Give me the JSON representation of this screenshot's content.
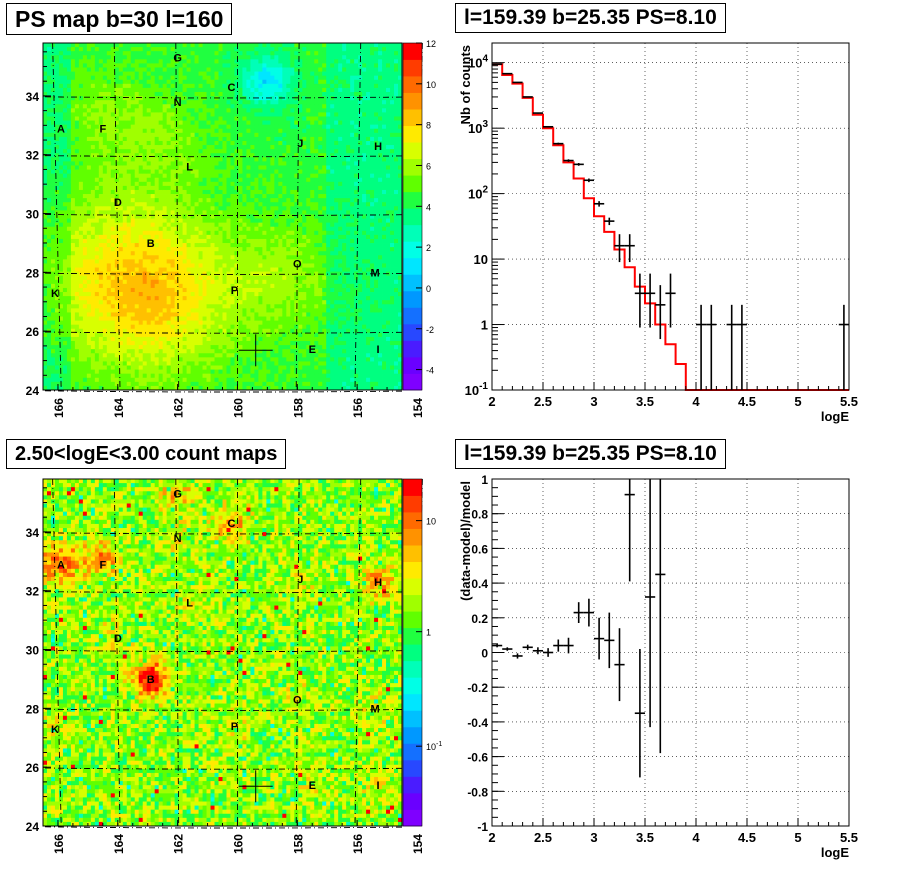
{
  "panels": {
    "ps_map": {
      "title": "PS map b=30 l=160"
    },
    "spectrum": {
      "title": "l=159.39 b=25.35 PS=8.10"
    },
    "count_map": {
      "title": "2.50<logE<3.00 count maps"
    },
    "residual": {
      "title": "l=159.39 b=25.35 PS=8.10"
    }
  },
  "chart_data": [
    {
      "type": "heatmap",
      "name": "ps_map",
      "title": "PS map b=30 l=160",
      "x_ticks": [
        "166",
        "164",
        "162",
        "160",
        "158",
        "156",
        "154"
      ],
      "y_ticks": [
        "24",
        "26",
        "28",
        "30",
        "32",
        "34"
      ],
      "xlim": [
        154.5,
        166.5
      ],
      "ylim": [
        24,
        35.8
      ],
      "colorbar_ticks": [
        "12",
        "10",
        "8",
        "6",
        "4",
        "2",
        "0",
        "-2",
        "-4"
      ],
      "colorbar_range": [
        -5,
        12
      ],
      "sources": [
        {
          "label": "G",
          "l": 162.0,
          "b": 35.3
        },
        {
          "label": "C",
          "l": 160.2,
          "b": 34.3
        },
        {
          "label": "N",
          "l": 162.0,
          "b": 33.8
        },
        {
          "label": "A",
          "l": 165.9,
          "b": 32.9
        },
        {
          "label": "F",
          "l": 164.5,
          "b": 32.9
        },
        {
          "label": "J",
          "l": 157.9,
          "b": 32.4
        },
        {
          "label": "H",
          "l": 155.3,
          "b": 32.3
        },
        {
          "label": "L",
          "l": 161.6,
          "b": 31.6
        },
        {
          "label": "D",
          "l": 164.0,
          "b": 30.4
        },
        {
          "label": "B",
          "l": 162.9,
          "b": 29.0
        },
        {
          "label": "O",
          "l": 158.0,
          "b": 28.3
        },
        {
          "label": "M",
          "l": 155.4,
          "b": 28.0
        },
        {
          "label": "K",
          "l": 166.1,
          "b": 27.3
        },
        {
          "label": "P",
          "l": 160.1,
          "b": 27.4
        },
        {
          "label": "E",
          "l": 157.5,
          "b": 25.4
        },
        {
          "label": "I",
          "l": 155.3,
          "b": 25.4
        }
      ],
      "marker": {
        "l": 159.39,
        "b": 25.35
      }
    },
    {
      "type": "line",
      "name": "spectrum",
      "title": "l=159.39 b=25.35 PS=8.10",
      "xlabel": "logE",
      "ylabel": "Nb of counts",
      "xlim": [
        2,
        5.5
      ],
      "ylim": [
        0.1,
        20000
      ],
      "yscale": "log",
      "x_ticks": [
        "2",
        "2.5",
        "3",
        "3.5",
        "4",
        "4.5",
        "5",
        "5.5"
      ],
      "y_ticks": [
        "10^-1",
        "1",
        "10",
        "10^2",
        "10^3",
        "10^4"
      ],
      "grid": true,
      "model_step": {
        "color": "#ff0000",
        "edges": [
          2.0,
          2.1,
          2.2,
          2.3,
          2.4,
          2.5,
          2.6,
          2.7,
          2.8,
          2.9,
          3.0,
          3.1,
          3.2,
          3.3,
          3.4,
          3.5,
          3.6,
          3.7,
          3.8,
          3.9,
          4.0,
          5.5
        ],
        "values": [
          9500,
          6500,
          4800,
          2900,
          1600,
          1000,
          550,
          300,
          170,
          85,
          45,
          26,
          14,
          7.5,
          3.8,
          2.1,
          1.0,
          0.5,
          0.25,
          0.1,
          0.1
        ]
      },
      "data_points": [
        {
          "x": 2.05,
          "y": 9500,
          "xerr": 0.05
        },
        {
          "x": 2.15,
          "y": 6800,
          "xerr": 0.05
        },
        {
          "x": 2.25,
          "y": 5000,
          "xerr": 0.05
        },
        {
          "x": 2.35,
          "y": 3000,
          "xerr": 0.05
        },
        {
          "x": 2.45,
          "y": 1700,
          "xerr": 0.05
        },
        {
          "x": 2.55,
          "y": 1050,
          "xerr": 0.05
        },
        {
          "x": 2.65,
          "y": 580,
          "xerr": 0.05
        },
        {
          "x": 2.75,
          "y": 320,
          "xerr": 0.05
        },
        {
          "x": 2.85,
          "y": 280,
          "xerr": 0.05
        },
        {
          "x": 2.95,
          "y": 160,
          "xerr": 0.05
        },
        {
          "x": 3.05,
          "y": 70,
          "xerr": 0.05
        },
        {
          "x": 3.15,
          "y": 38,
          "xerr": 0.05
        },
        {
          "x": 3.25,
          "y": 16,
          "xerr": 0.05,
          "ylo": 9,
          "yhi": 24
        },
        {
          "x": 3.35,
          "y": 16,
          "xerr": 0.05,
          "ylo": 9,
          "yhi": 24
        },
        {
          "x": 3.45,
          "y": 3,
          "xerr": 0.05,
          "ylo": 0.9,
          "yhi": 6
        },
        {
          "x": 3.55,
          "y": 3,
          "xerr": 0.05,
          "ylo": 0.9,
          "yhi": 6
        },
        {
          "x": 3.65,
          "y": 2,
          "xerr": 0.05,
          "ylo": 0.6,
          "yhi": 4
        },
        {
          "x": 3.75,
          "y": 3,
          "xerr": 0.05,
          "ylo": 0.9,
          "yhi": 6
        },
        {
          "x": 4.05,
          "y": 1,
          "xerr": 0.05,
          "ylo": 0.1,
          "yhi": 2
        },
        {
          "x": 4.15,
          "y": 1,
          "xerr": 0.05,
          "ylo": 0.1,
          "yhi": 2
        },
        {
          "x": 4.35,
          "y": 1,
          "xerr": 0.05,
          "ylo": 0.1,
          "yhi": 2
        },
        {
          "x": 4.45,
          "y": 1,
          "xerr": 0.05,
          "ylo": 0.1,
          "yhi": 2
        },
        {
          "x": 5.45,
          "y": 1,
          "xerr": 0.05,
          "ylo": 0.1,
          "yhi": 2
        }
      ]
    },
    {
      "type": "heatmap",
      "name": "count_map",
      "title": "2.50<logE<3.00 count maps",
      "x_ticks": [
        "166",
        "164",
        "162",
        "160",
        "158",
        "156",
        "154"
      ],
      "y_ticks": [
        "24",
        "26",
        "28",
        "30",
        "32",
        "34"
      ],
      "xlim": [
        154.5,
        166.5
      ],
      "ylim": [
        24,
        35.8
      ],
      "colorbar_ticks": [
        "10",
        "1",
        "10^-1"
      ],
      "colorbar_scale": "log",
      "sources": [
        {
          "label": "G",
          "l": 162.0,
          "b": 35.3
        },
        {
          "label": "C",
          "l": 160.2,
          "b": 34.3
        },
        {
          "label": "N",
          "l": 162.0,
          "b": 33.8
        },
        {
          "label": "A",
          "l": 165.9,
          "b": 32.9
        },
        {
          "label": "F",
          "l": 164.5,
          "b": 32.9
        },
        {
          "label": "J",
          "l": 157.9,
          "b": 32.4
        },
        {
          "label": "H",
          "l": 155.3,
          "b": 32.3
        },
        {
          "label": "L",
          "l": 161.6,
          "b": 31.6
        },
        {
          "label": "D",
          "l": 164.0,
          "b": 30.4
        },
        {
          "label": "B",
          "l": 162.9,
          "b": 29.0
        },
        {
          "label": "O",
          "l": 158.0,
          "b": 28.3
        },
        {
          "label": "M",
          "l": 155.4,
          "b": 28.0
        },
        {
          "label": "K",
          "l": 166.1,
          "b": 27.3
        },
        {
          "label": "P",
          "l": 160.1,
          "b": 27.4
        },
        {
          "label": "E",
          "l": 157.5,
          "b": 25.4
        },
        {
          "label": "I",
          "l": 155.3,
          "b": 25.4
        }
      ],
      "marker": {
        "l": 159.39,
        "b": 25.35
      }
    },
    {
      "type": "scatter",
      "name": "residual",
      "title": "l=159.39 b=25.35 PS=8.10",
      "xlabel": "logE",
      "ylabel": "(data-model)/model",
      "xlim": [
        2,
        5.5
      ],
      "ylim": [
        -1,
        1
      ],
      "x_ticks": [
        "2",
        "2.5",
        "3",
        "3.5",
        "4",
        "4.5",
        "5",
        "5.5"
      ],
      "y_ticks": [
        "-1",
        "-0.8",
        "-0.6",
        "-0.4",
        "-0.2",
        "0",
        "0.2",
        "0.4",
        "0.6",
        "0.8",
        "1"
      ],
      "grid": true,
      "data_points": [
        {
          "x": 2.05,
          "y": 0.04,
          "yerr": 0.01
        },
        {
          "x": 2.15,
          "y": 0.02,
          "yerr": 0.01
        },
        {
          "x": 2.25,
          "y": -0.02,
          "yerr": 0.015
        },
        {
          "x": 2.35,
          "y": 0.03,
          "yerr": 0.015
        },
        {
          "x": 2.45,
          "y": 0.01,
          "yerr": 0.02
        },
        {
          "x": 2.55,
          "y": 0.0,
          "yerr": 0.025
        },
        {
          "x": 2.65,
          "y": 0.04,
          "yerr": 0.035
        },
        {
          "x": 2.75,
          "y": 0.04,
          "yerr": 0.045
        },
        {
          "x": 2.85,
          "y": 0.23,
          "yerr": 0.06
        },
        {
          "x": 2.95,
          "y": 0.23,
          "yerr": 0.08
        },
        {
          "x": 3.05,
          "y": 0.08,
          "yerr": 0.12
        },
        {
          "x": 3.15,
          "y": 0.07,
          "yerr": 0.16
        },
        {
          "x": 3.25,
          "y": -0.07,
          "yerr": 0.21
        },
        {
          "x": 3.35,
          "y": 0.91,
          "yerr": 0.5
        },
        {
          "x": 3.45,
          "y": -0.35,
          "yerr": 0.37
        },
        {
          "x": 3.55,
          "y": 0.32,
          "yerr": 0.75
        },
        {
          "x": 3.65,
          "y": 0.45,
          "yerr": 1.03
        }
      ]
    }
  ]
}
